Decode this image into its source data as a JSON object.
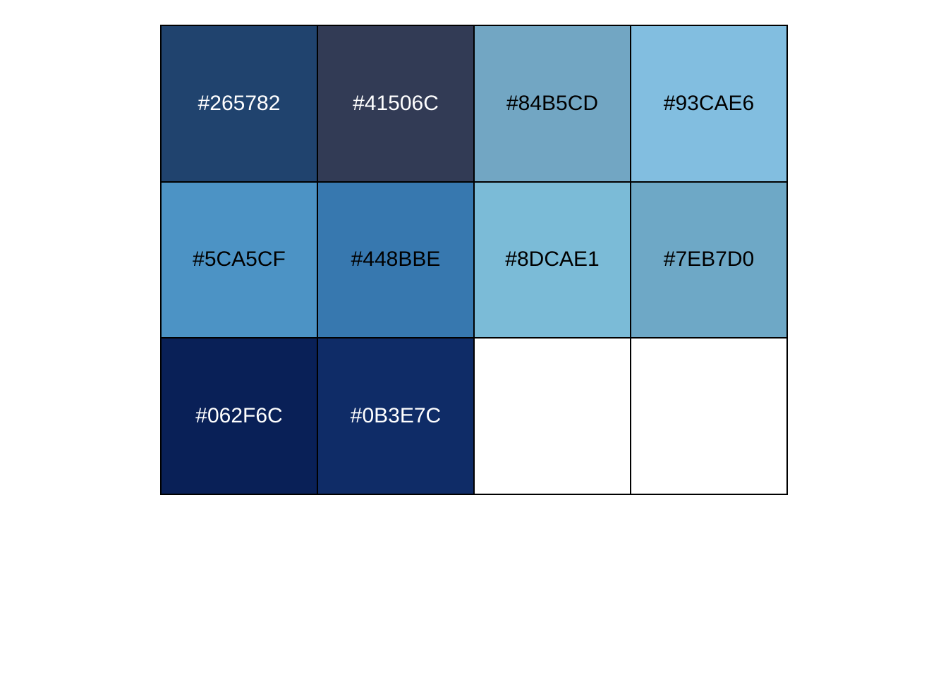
{
  "swatches": [
    {
      "label": "#265782",
      "fill": "#20436E",
      "text_color": "#ffffff"
    },
    {
      "label": "#41506C",
      "fill": "#323B55",
      "text_color": "#ffffff"
    },
    {
      "label": "#84B5CD",
      "fill": "#72A6C3",
      "text_color": "#000000"
    },
    {
      "label": "#93CAE6",
      "fill": "#82BEE0",
      "text_color": "#000000"
    },
    {
      "label": "#5CA5CF",
      "fill": "#4C93C5",
      "text_color": "#000000"
    },
    {
      "label": "#448BBE",
      "fill": "#3778AF",
      "text_color": "#000000"
    },
    {
      "label": "#8DCAE1",
      "fill": "#7BBBD7",
      "text_color": "#000000"
    },
    {
      "label": "#7EB7D0",
      "fill": "#6EA8C6",
      "text_color": "#000000"
    },
    {
      "label": "#062F6C",
      "fill": "#092057",
      "text_color": "#ffffff"
    },
    {
      "label": "#0B3E7C",
      "fill": "#0F2C67",
      "text_color": "#ffffff"
    },
    {
      "label": "",
      "fill": "#FFFFFF",
      "text_color": "#000000"
    },
    {
      "label": "",
      "fill": "#FFFFFF",
      "text_color": "#000000"
    }
  ]
}
